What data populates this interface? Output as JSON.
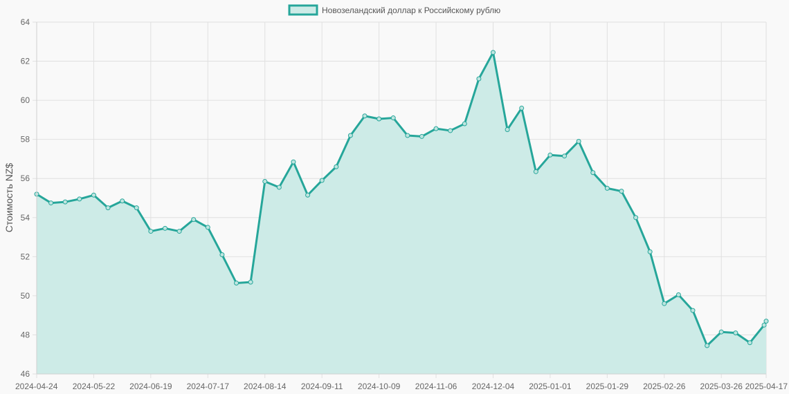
{
  "chart_data": {
    "type": "area",
    "legend": {
      "position": "top-center",
      "label": "Новозеландский доллар к Российскому рублю"
    },
    "ylabel": "Стоимость NZ$",
    "xlabel": "",
    "ylim": [
      46,
      64
    ],
    "y_ticks": [
      "46",
      "48",
      "50",
      "52",
      "54",
      "56",
      "58",
      "60",
      "62",
      "64"
    ],
    "x_ticks": [
      "2024-04-24",
      "2024-05-22",
      "2024-06-19",
      "2024-07-17",
      "2024-08-14",
      "2024-09-11",
      "2024-10-09",
      "2024-11-06",
      "2024-12-04",
      "2025-01-01",
      "2025-01-29",
      "2025-02-26",
      "2025-03-26",
      "2025-04-17"
    ],
    "grid": true,
    "colors": {
      "line": "#26a69a",
      "fill": "#cdebe7",
      "grid": "#e0e0e0",
      "background": "#f9f9f9"
    },
    "x": [
      "2024-04-24",
      "2024-05-01",
      "2024-05-08",
      "2024-05-15",
      "2024-05-22",
      "2024-05-29",
      "2024-06-05",
      "2024-06-12",
      "2024-06-19",
      "2024-06-26",
      "2024-07-03",
      "2024-07-10",
      "2024-07-17",
      "2024-07-24",
      "2024-07-31",
      "2024-08-07",
      "2024-08-14",
      "2024-08-21",
      "2024-08-28",
      "2024-09-04",
      "2024-09-11",
      "2024-09-18",
      "2024-09-25",
      "2024-10-02",
      "2024-10-09",
      "2024-10-16",
      "2024-10-23",
      "2024-10-30",
      "2024-11-06",
      "2024-11-13",
      "2024-11-20",
      "2024-11-27",
      "2024-12-04",
      "2024-12-11",
      "2024-12-18",
      "2024-12-25",
      "2025-01-01",
      "2025-01-08",
      "2025-01-15",
      "2025-01-22",
      "2025-01-29",
      "2025-02-05",
      "2025-02-12",
      "2025-02-19",
      "2025-02-26",
      "2025-03-05",
      "2025-03-12",
      "2025-03-19",
      "2025-03-26",
      "2025-04-02",
      "2025-04-09",
      "2025-04-16",
      "2025-04-17"
    ],
    "series": [
      {
        "name": "Новозеландский доллар к Российскому рублю",
        "values": [
          55.2,
          54.75,
          54.8,
          54.95,
          55.15,
          54.5,
          54.85,
          54.5,
          53.3,
          53.45,
          53.3,
          53.9,
          53.5,
          52.1,
          50.65,
          50.7,
          55.85,
          55.55,
          56.85,
          55.15,
          55.9,
          56.6,
          58.2,
          59.2,
          59.05,
          59.1,
          58.2,
          58.15,
          58.55,
          58.45,
          58.8,
          61.1,
          62.45,
          58.5,
          59.6,
          56.35,
          57.2,
          57.15,
          57.9,
          56.3,
          55.5,
          55.35,
          54.0,
          52.25,
          49.6,
          50.05,
          49.25,
          47.45,
          48.15,
          48.1,
          47.6,
          48.5,
          48.7
        ]
      }
    ]
  }
}
